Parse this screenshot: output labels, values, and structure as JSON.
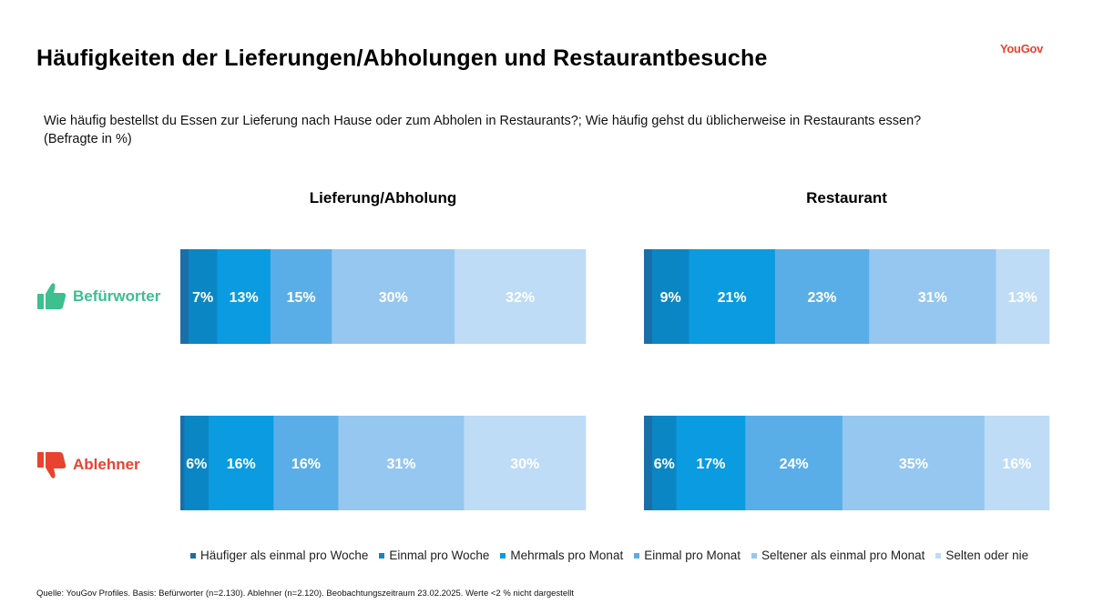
{
  "title": "Häufigkeiten der Lieferungen/Abholungen und Restaurantbesuche",
  "logo": "YouGov",
  "question": "Wie häufig bestellst du Essen zur Lieferung nach Hause oder zum Abholen in Restaurants?; Wie häufig gehst du üblicherweise in Restaurants essen?",
  "question_note": "(Befragte in %)",
  "source": "Quelle: YouGov Profiles. Basis: Befürworter (n=2.130). Ablehner (n=2.120). Beobachtungszeitraum 23.02.2025. Werte <2 % nicht dargestellt",
  "groups": [
    {
      "label": "Befürworter",
      "color": "#3dbf8f",
      "icon": "thumbs-up-icon"
    },
    {
      "label": "Ablehner",
      "color": "#e8432e",
      "icon": "thumbs-down-icon"
    }
  ],
  "chart_data": {
    "type": "bar",
    "orientation": "horizontal",
    "stacked": true,
    "unit": "%",
    "categories_legend": [
      "Häufiger als einmal pro Woche",
      "Einmal pro Woche",
      "Mehrmals pro Monat",
      "Einmal pro Monat",
      "Seltener als einmal pro Monat",
      "Selten oder nie"
    ],
    "colors": [
      "#1a6fa8",
      "#0a86c4",
      "#0a9be0",
      "#5aaee8",
      "#96c7f0",
      "#bedcf5"
    ],
    "panels": [
      {
        "title": "Lieferung/Abholung",
        "bars": [
          {
            "group": "Befürworter",
            "values": [
              2,
              7,
              13,
              15,
              30,
              32
            ],
            "labels": [
              "",
              "7%",
              "13%",
              "15%",
              "30%",
              "32%"
            ]
          },
          {
            "group": "Ablehner",
            "values": [
              1,
              6,
              16,
              16,
              31,
              30
            ],
            "labels": [
              "",
              "6%",
              "16%",
              "16%",
              "31%",
              "30%"
            ]
          }
        ]
      },
      {
        "title": "Restaurant",
        "bars": [
          {
            "group": "Befürworter",
            "values": [
              2,
              9,
              21,
              23,
              31,
              13
            ],
            "labels": [
              "",
              "9%",
              "21%",
              "23%",
              "31%",
              "13%"
            ]
          },
          {
            "group": "Ablehner",
            "values": [
              2,
              6,
              17,
              24,
              35,
              16
            ],
            "labels": [
              "",
              "6%",
              "17%",
              "24%",
              "35%",
              "16%"
            ]
          }
        ]
      }
    ]
  }
}
